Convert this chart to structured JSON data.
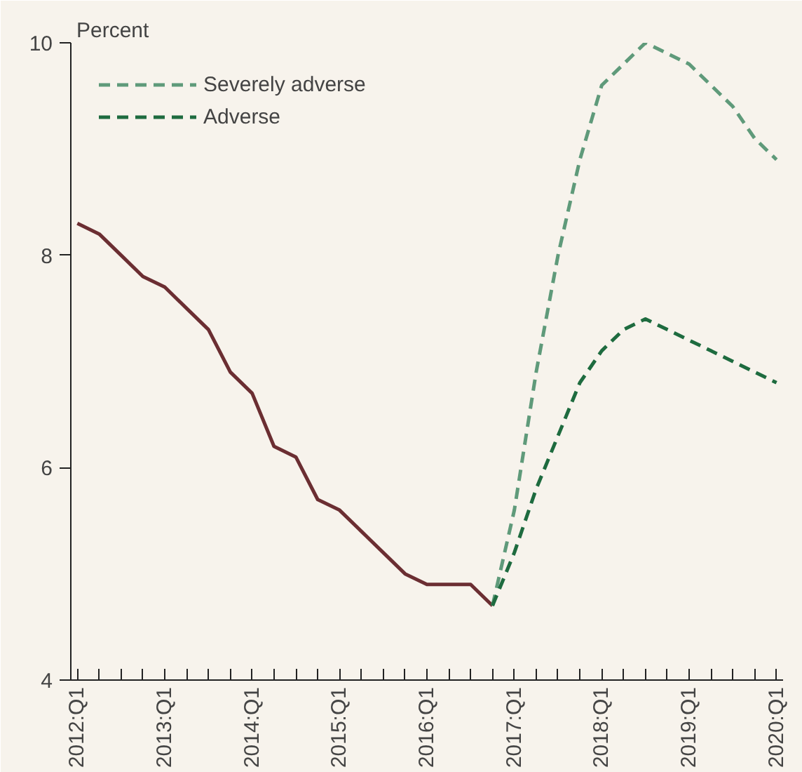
{
  "chart_data": {
    "type": "line",
    "ylabel": "Percent",
    "categories": [
      "2012:Q1",
      null,
      null,
      null,
      "2013:Q1",
      null,
      null,
      null,
      "2014:Q1",
      null,
      null,
      null,
      "2015:Q1",
      null,
      null,
      null,
      "2016:Q1",
      null,
      null,
      null,
      "2017:Q1",
      null,
      null,
      null,
      "2018:Q1",
      null,
      null,
      null,
      "2019:Q1",
      null,
      null,
      null,
      "2020:Q1"
    ],
    "series": [
      {
        "color": "#6b2e32",
        "line_style": "solid",
        "values": [
          8.3,
          8.2,
          8.0,
          7.8,
          7.7,
          7.5,
          7.3,
          6.9,
          6.7,
          6.2,
          6.1,
          5.7,
          5.6,
          5.4,
          5.2,
          5.0,
          4.9,
          4.9,
          4.9,
          4.7,
          null,
          null,
          null,
          null,
          null,
          null,
          null,
          null,
          null,
          null,
          null,
          null,
          null
        ]
      },
      {
        "name": "Severely adverse",
        "color": "#5f9a7a",
        "line_style": "dashed",
        "values": [
          null,
          null,
          null,
          null,
          null,
          null,
          null,
          null,
          null,
          null,
          null,
          null,
          null,
          null,
          null,
          null,
          null,
          null,
          null,
          4.7,
          5.6,
          6.9,
          8.0,
          8.9,
          9.6,
          9.8,
          10.0,
          9.9,
          9.8,
          9.6,
          9.4,
          9.1,
          8.9
        ]
      },
      {
        "name": "Adverse",
        "color": "#1e6b3f",
        "line_style": "dashed",
        "values": [
          null,
          null,
          null,
          null,
          null,
          null,
          null,
          null,
          null,
          null,
          null,
          null,
          null,
          null,
          null,
          null,
          null,
          null,
          null,
          4.7,
          5.2,
          5.8,
          6.3,
          6.8,
          7.1,
          7.3,
          7.4,
          7.3,
          7.2,
          7.1,
          7.0,
          6.9,
          6.8
        ]
      }
    ],
    "ylim": [
      4,
      10
    ],
    "yticks": [
      4,
      6,
      8,
      10
    ],
    "grid": false,
    "legend": "top left",
    "marker": "none"
  }
}
